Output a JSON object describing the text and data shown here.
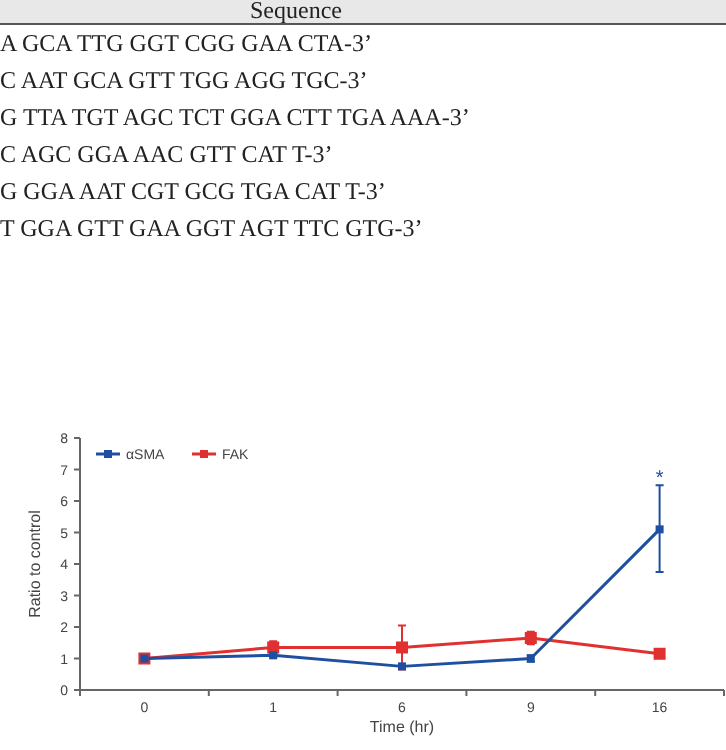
{
  "chart_data": {
    "type": "line",
    "xlabel": "Time (hr)",
    "ylabel": "Ratio to control",
    "categories": [
      "0",
      "1",
      "6",
      "9",
      "16"
    ],
    "series": [
      {
        "name": "αSMA",
        "color": "#1f4fa0",
        "values": [
          1.0,
          1.1,
          0.75,
          1.0,
          5.1
        ],
        "errors": [
          null,
          0.05,
          null,
          0.1,
          [
            3.75,
            6.5
          ]
        ]
      },
      {
        "name": "FAK",
        "color": "#e03030",
        "values": [
          1.0,
          1.35,
          1.35,
          1.65,
          1.15
        ],
        "errors": [
          null,
          0.2,
          [
            0.65,
            2.05
          ],
          0.2,
          null
        ]
      }
    ],
    "ylim": [
      0,
      8
    ],
    "yticks": [
      0,
      1,
      2,
      3,
      4,
      5,
      6,
      7,
      8
    ],
    "legend": "top left",
    "marker": "square",
    "grid": false,
    "annotations": [
      "Sequence",
      "A GCA TTG GGT CGG GAA CTA-3’",
      "C AAT GCA GTT TGG AGG TGC-3’",
      "G TTA TGT AGC TCT GGA CTT TGA AAA-3’",
      "C AGC GGA AAC GTT CAT T-3’",
      "G GGA AAT CGT GCG TGA CAT T-3’",
      "T GGA GTT GAA GGT AGT TTC GTG-3’",
      {
        "text": "*",
        "x": "16",
        "y": 6.8
      }
    ]
  }
}
